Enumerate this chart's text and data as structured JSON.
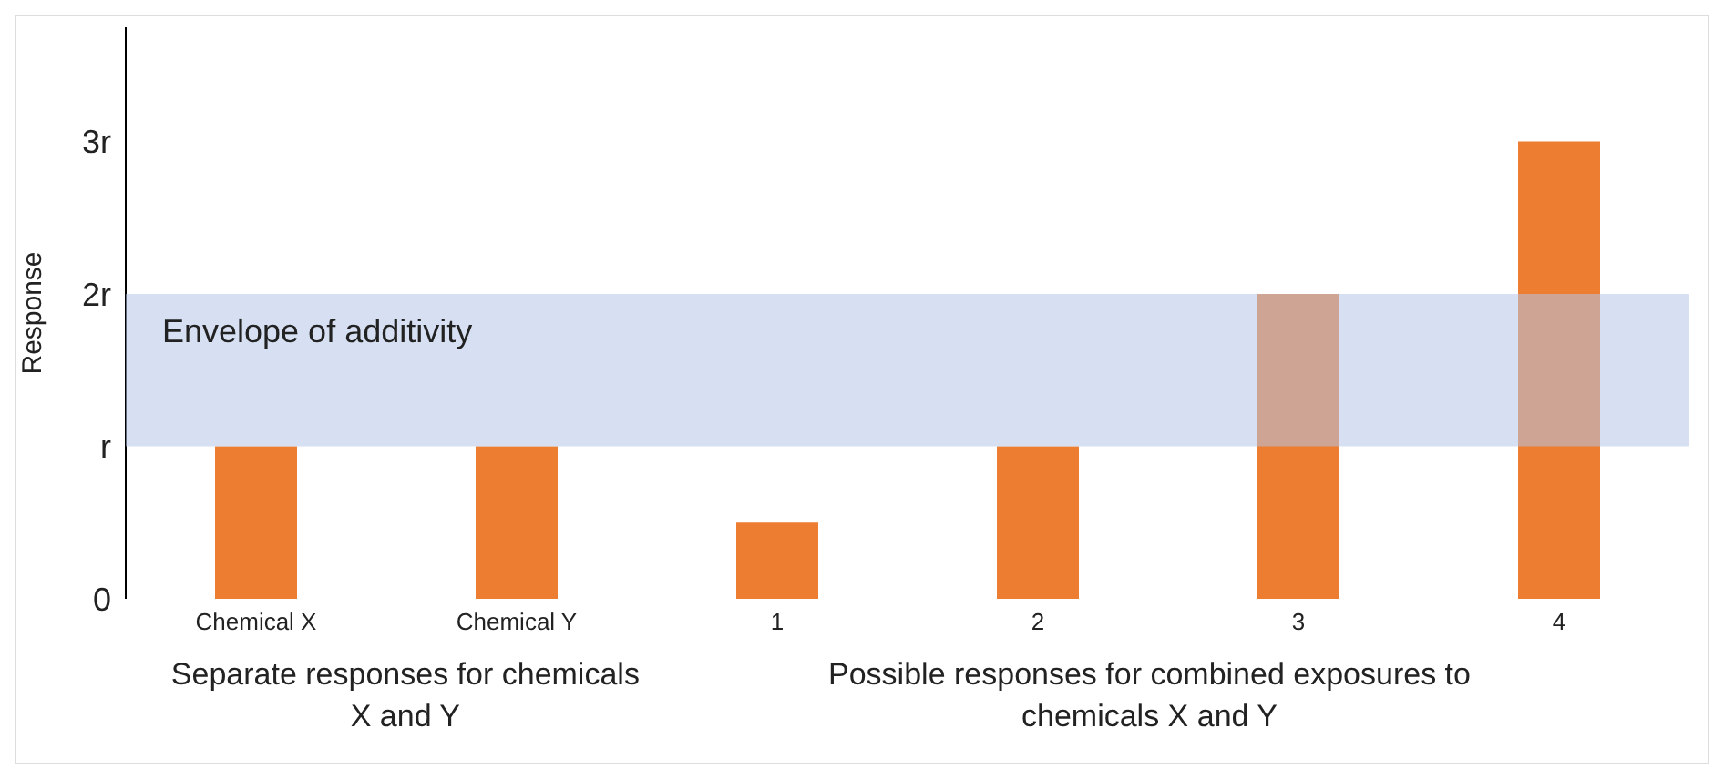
{
  "chart_data": {
    "type": "bar",
    "ylabel": "Response",
    "categories": [
      "Chemical X",
      "Chemical Y",
      "1",
      "2",
      "3",
      "4"
    ],
    "values": [
      1,
      1,
      0.5,
      1,
      2,
      3
    ],
    "color": "#ed7d31",
    "ylim": [
      0,
      3.75
    ],
    "yticks": [
      0,
      {
        "value": 1,
        "label": "r"
      },
      {
        "value": 2,
        "label": "2r"
      },
      {
        "value": 3,
        "label": "3r"
      }
    ],
    "bands": [
      {
        "axis": "y",
        "from": 1,
        "to": 2,
        "label": "Envelope of additivity",
        "color": "#b4c7e7"
      }
    ],
    "annotations": [
      "Separate responses for chemicals X and Y",
      "Possible responses for combined exposures to chemicals X and Y"
    ]
  }
}
